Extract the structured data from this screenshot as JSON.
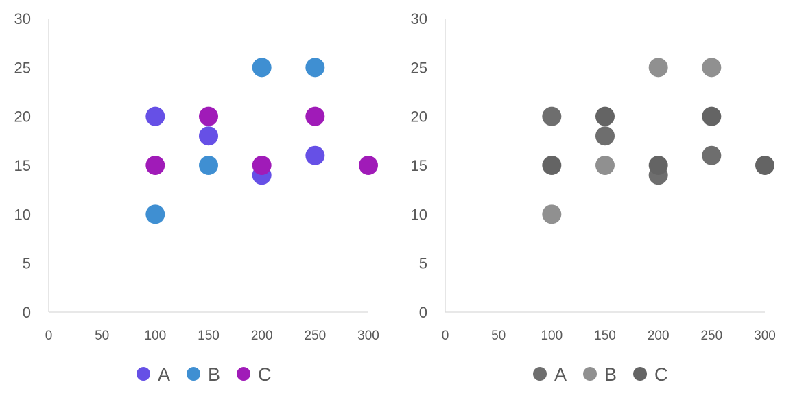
{
  "chart_data": [
    {
      "type": "scatter",
      "xlim": [
        0,
        300
      ],
      "ylim": [
        0,
        30
      ],
      "xticks": [
        0,
        50,
        100,
        150,
        200,
        250,
        300
      ],
      "yticks": [
        0,
        5,
        10,
        15,
        20,
        25,
        30
      ],
      "grid": false,
      "legend": "bottom",
      "series": [
        {
          "name": "A",
          "color": "#6650E6",
          "points": [
            [
              100,
              20
            ],
            [
              150,
              18
            ],
            [
              200,
              14
            ],
            [
              250,
              16
            ]
          ]
        },
        {
          "name": "B",
          "color": "#3F8FD2",
          "points": [
            [
              100,
              10
            ],
            [
              150,
              15
            ],
            [
              200,
              25
            ],
            [
              250,
              25
            ]
          ]
        },
        {
          "name": "C",
          "color": "#A01BB8",
          "points": [
            [
              100,
              15
            ],
            [
              150,
              20
            ],
            [
              200,
              15
            ],
            [
              250,
              20
            ],
            [
              300,
              15
            ]
          ]
        }
      ]
    },
    {
      "type": "scatter",
      "xlim": [
        0,
        300
      ],
      "ylim": [
        0,
        30
      ],
      "xticks": [
        0,
        50,
        100,
        150,
        200,
        250,
        300
      ],
      "yticks": [
        0,
        5,
        10,
        15,
        20,
        25,
        30
      ],
      "grid": false,
      "legend": "bottom",
      "series": [
        {
          "name": "A",
          "color": "#6E6E6E",
          "points": [
            [
              100,
              20
            ],
            [
              150,
              18
            ],
            [
              200,
              14
            ],
            [
              250,
              16
            ]
          ]
        },
        {
          "name": "B",
          "color": "#909090",
          "points": [
            [
              100,
              10
            ],
            [
              150,
              15
            ],
            [
              200,
              25
            ],
            [
              250,
              25
            ]
          ]
        },
        {
          "name": "C",
          "color": "#646464",
          "points": [
            [
              100,
              15
            ],
            [
              150,
              20
            ],
            [
              200,
              15
            ],
            [
              250,
              20
            ],
            [
              300,
              15
            ]
          ]
        }
      ]
    }
  ]
}
